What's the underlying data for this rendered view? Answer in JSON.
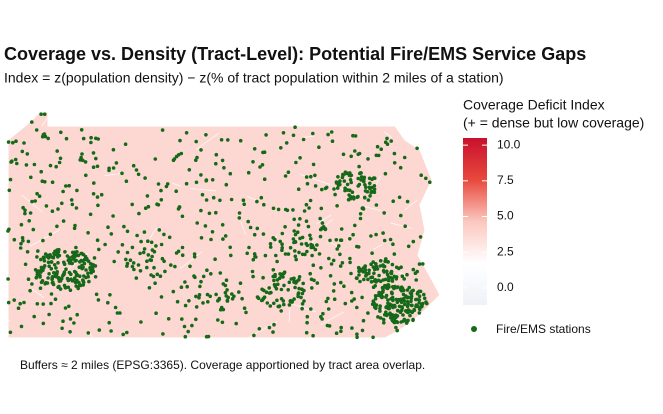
{
  "title": "Coverage vs. Density (Tract-Level): Potential Fire/EMS Service Gaps",
  "subtitle": "Index = z(population density) − z(% of tract population within 2 miles of a station)",
  "legend": {
    "title_lines": [
      "Coverage Deficit Index",
      "(+ = dense but low coverage)"
    ],
    "lim": [
      -1.2,
      10.5
    ],
    "ticks": [
      {
        "value": 0,
        "label": "0.0"
      },
      {
        "value": 2.5,
        "label": "2.5"
      },
      {
        "value": 5,
        "label": "5.0"
      },
      {
        "value": 7.5,
        "label": "7.5"
      },
      {
        "value": 10,
        "label": "10.0"
      }
    ],
    "colors": [
      "#eef2f7",
      "#ffffff",
      "#fbc7bf",
      "#e8493c",
      "#c8102e"
    ]
  },
  "stations": {
    "label": "Fire/EMS stations",
    "color": "#17691a"
  },
  "map_fill": "#fdd8d2",
  "caption": "Buffers ≈ 2 miles (EPSG:3365). Coverage apportioned by tract area overlap."
}
